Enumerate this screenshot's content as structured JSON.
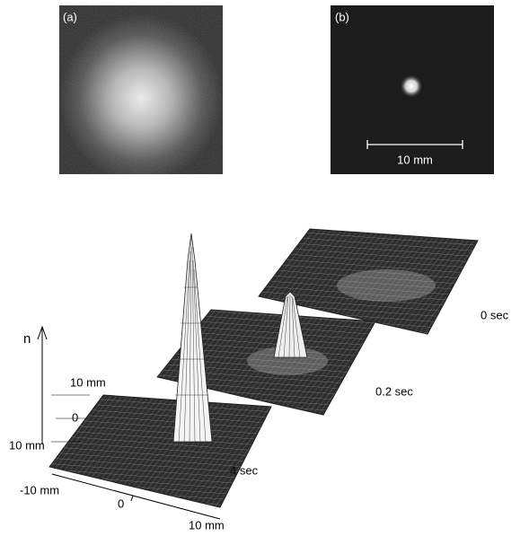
{
  "panels": [
    {
      "label": "(a)"
    },
    {
      "label": "(b)",
      "scale_bar": "10 mm"
    }
  ],
  "surfaces": [
    {
      "label": "0 sec"
    },
    {
      "label": "0.2 sec"
    },
    {
      "label": "4 sec"
    }
  ],
  "axes": {
    "vertical": "n",
    "depth_top": "10 mm",
    "depth_mid": "0",
    "depth_bottom": "10 mm",
    "front_left": "-10 mm",
    "front_mid": "0",
    "front_right": "10 mm"
  }
}
